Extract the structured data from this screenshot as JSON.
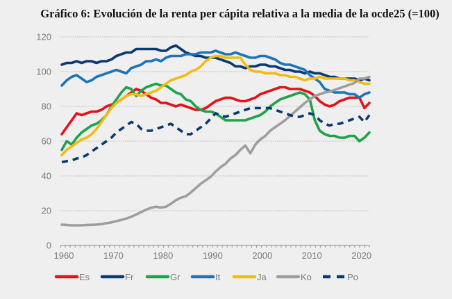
{
  "chart_data": {
    "type": "line",
    "title": "Gráfico 6: Evolución de la renta per cápita relativa a la media de la ocde25 (=100)",
    "xlabel": "",
    "ylabel": "",
    "xlim": [
      1960,
      2022
    ],
    "ylim": [
      0,
      120
    ],
    "grid": true,
    "legend_position": "bottom",
    "x_ticks": [
      "1960",
      "1970",
      "1980",
      "1990",
      "2000",
      "2010",
      "2020"
    ],
    "y_ticks": [
      "0",
      "20",
      "40",
      "60",
      "80",
      "100",
      "120"
    ],
    "x": [
      1960,
      1961,
      1962,
      1963,
      1964,
      1965,
      1966,
      1967,
      1968,
      1969,
      1970,
      1971,
      1972,
      1973,
      1974,
      1975,
      1976,
      1977,
      1978,
      1979,
      1980,
      1981,
      1982,
      1983,
      1984,
      1985,
      1986,
      1987,
      1988,
      1989,
      1990,
      1991,
      1992,
      1993,
      1994,
      1995,
      1996,
      1997,
      1998,
      1999,
      2000,
      2001,
      2002,
      2003,
      2004,
      2005,
      2006,
      2007,
      2008,
      2009,
      2010,
      2011,
      2012,
      2013,
      2014,
      2015,
      2016,
      2017,
      2018,
      2019,
      2020,
      2021,
      2022
    ],
    "series": [
      {
        "name": "Es",
        "color": "#e3121b",
        "dash": false,
        "values": [
          64,
          68,
          72,
          76,
          75,
          76,
          77,
          77,
          78,
          80,
          81,
          82,
          84,
          86,
          88,
          90,
          89,
          87,
          85,
          84,
          82,
          82,
          81,
          80,
          81,
          80,
          79,
          78,
          78,
          79,
          81,
          83,
          84,
          85,
          85,
          84,
          83,
          83,
          84,
          85,
          87,
          88,
          89,
          90,
          91,
          91,
          90,
          90,
          90,
          89,
          88,
          86,
          83,
          81,
          80,
          81,
          83,
          84,
          85,
          85,
          85,
          79,
          82
        ]
      },
      {
        "name": "Fr",
        "color": "#0b3a70",
        "dash": false,
        "values": [
          104,
          105,
          105,
          106,
          105,
          106,
          106,
          105,
          106,
          106,
          107,
          109,
          110,
          111,
          111,
          113,
          113,
          113,
          113,
          113,
          112,
          112,
          114,
          115,
          113,
          111,
          110,
          109,
          109,
          108,
          108,
          108,
          107,
          106,
          105,
          103,
          103,
          102,
          103,
          103,
          104,
          104,
          103,
          103,
          102,
          101,
          101,
          100,
          100,
          99,
          100,
          99,
          99,
          98,
          97,
          97,
          96,
          96,
          96,
          96,
          95,
          96,
          95
        ]
      },
      {
        "name": "Gr",
        "color": "#1ea24b",
        "dash": false,
        "values": [
          55,
          60,
          58,
          62,
          65,
          67,
          69,
          70,
          72,
          75,
          80,
          84,
          88,
          91,
          90,
          86,
          89,
          91,
          92,
          93,
          92,
          92,
          90,
          88,
          87,
          84,
          83,
          80,
          78,
          77,
          77,
          76,
          74,
          72,
          72,
          72,
          72,
          72,
          73,
          74,
          75,
          77,
          80,
          82,
          84,
          85,
          86,
          87,
          88,
          87,
          84,
          72,
          66,
          64,
          63,
          63,
          62,
          62,
          63,
          63,
          60,
          62,
          65
        ]
      },
      {
        "name": "It",
        "color": "#1f74b8",
        "dash": false,
        "values": [
          92,
          95,
          97,
          98,
          96,
          94,
          95,
          97,
          98,
          99,
          100,
          101,
          100,
          99,
          102,
          103,
          104,
          106,
          106,
          107,
          106,
          108,
          109,
          109,
          109,
          110,
          110,
          110,
          111,
          111,
          111,
          112,
          111,
          110,
          110,
          111,
          110,
          109,
          108,
          108,
          109,
          109,
          108,
          107,
          105,
          104,
          104,
          103,
          102,
          101,
          98,
          96,
          94,
          90,
          89,
          88,
          88,
          88,
          87,
          87,
          85,
          87,
          88
        ]
      },
      {
        "name": "Ja",
        "color": "#f2bb14",
        "dash": false,
        "values": [
          52,
          55,
          57,
          59,
          61,
          62,
          64,
          67,
          71,
          75,
          79,
          82,
          84,
          86,
          87,
          87,
          86,
          87,
          88,
          89,
          91,
          93,
          95,
          96,
          97,
          98,
          100,
          101,
          103,
          106,
          108,
          109,
          109,
          108,
          108,
          108,
          108,
          104,
          101,
          100,
          100,
          99,
          99,
          99,
          98,
          98,
          97,
          97,
          96,
          95,
          96,
          96,
          97,
          96,
          96,
          96,
          96,
          96,
          95,
          95,
          94,
          93,
          93
        ]
      },
      {
        "name": "Ko",
        "color": "#9e9e9e",
        "dash": false,
        "values": [
          12,
          11.8,
          11.6,
          11.6,
          11.6,
          11.8,
          11.9,
          12,
          12.3,
          12.8,
          13.3,
          14,
          14.7,
          15.5,
          16.5,
          17.8,
          19.2,
          20.6,
          21.7,
          22.3,
          21.8,
          22.3,
          24,
          26,
          27.5,
          28.3,
          30.5,
          33,
          35.5,
          37.5,
          39.5,
          42.5,
          45,
          47,
          50,
          52,
          55,
          57.5,
          53,
          58,
          61,
          63,
          66,
          68,
          70,
          72,
          74.5,
          77,
          79.5,
          82,
          84,
          86,
          87,
          88,
          88.5,
          89.5,
          90.5,
          91.5,
          92.5,
          93.5,
          96,
          96,
          97
        ]
      },
      {
        "name": "Po",
        "color": "#0b3a70",
        "dash": true,
        "values": [
          48,
          48.5,
          49,
          50,
          50.5,
          52,
          54,
          56,
          58,
          60,
          62,
          65,
          67,
          69,
          71,
          70,
          67,
          66,
          66,
          67,
          68,
          69,
          70,
          68,
          66,
          64,
          64,
          66,
          68,
          70,
          73,
          76,
          75,
          74,
          75,
          76,
          77,
          78,
          79,
          79,
          79,
          79,
          79,
          78,
          77,
          76,
          75,
          74,
          74,
          75,
          76,
          75,
          72,
          70,
          69,
          70,
          70,
          71,
          72,
          73,
          74,
          71,
          75
        ]
      }
    ]
  }
}
